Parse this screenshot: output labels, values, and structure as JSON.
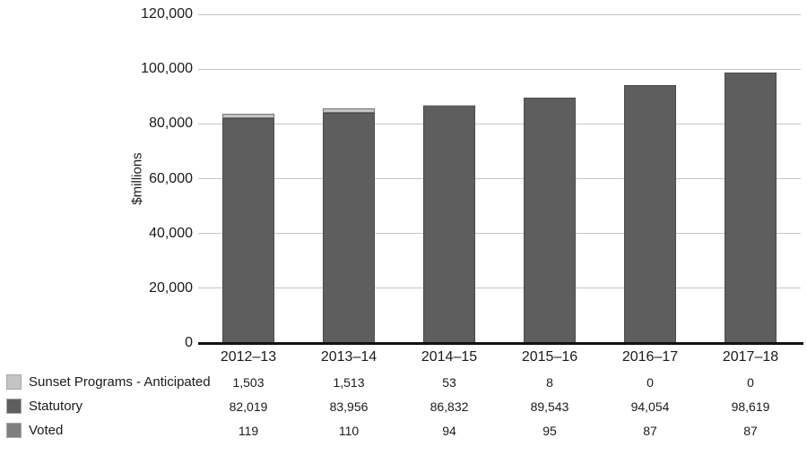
{
  "chart_data": {
    "type": "bar",
    "stacked": true,
    "title": "",
    "xlabel": "",
    "ylabel": "$millions",
    "ylim": [
      0,
      120000
    ],
    "ytick_step": 20000,
    "grid": true,
    "legend_position": "bottom-left-table",
    "yticks": [
      {
        "value": 0,
        "label": "0"
      },
      {
        "value": 20000,
        "label": "20,000"
      },
      {
        "value": 40000,
        "label": "40,000"
      },
      {
        "value": 60000,
        "label": "60,000"
      },
      {
        "value": 80000,
        "label": "80,000"
      },
      {
        "value": 100000,
        "label": "100,000"
      },
      {
        "value": 120000,
        "label": "120,000"
      }
    ],
    "categories": [
      "2012–13",
      "2013–14",
      "2014–15",
      "2015–16",
      "2016–17",
      "2017–18"
    ],
    "series": [
      {
        "name": "Sunset Programs - Anticipated",
        "color": "#c4c4c4",
        "border_color": "#737373",
        "values": [
          1503,
          1513,
          53,
          8,
          0,
          0
        ],
        "labels": [
          "1,503",
          "1,513",
          "53",
          "8",
          "0",
          "0"
        ]
      },
      {
        "name": "Statutory",
        "color": "#5e5e5e",
        "border_color": "#4b4b4b",
        "values": [
          82019,
          83956,
          86832,
          89543,
          94054,
          98619
        ],
        "labels": [
          "82,019",
          "83,956",
          "86,832",
          "89,543",
          "94,054",
          "98,619"
        ]
      },
      {
        "name": "Voted",
        "color": "#7f7f7f",
        "border_color": "#6a6a6a",
        "values": [
          119,
          110,
          94,
          95,
          87,
          87
        ],
        "labels": [
          "119",
          "110",
          "94",
          "95",
          "87",
          "87"
        ]
      }
    ],
    "stack_order_bottom_to_top": [
      "Voted",
      "Statutory",
      "Sunset Programs - Anticipated"
    ],
    "colors": {
      "gridline": "#c6c6c6",
      "axis": "#111111",
      "text": "#1a1a1a",
      "background": "#ffffff"
    }
  }
}
